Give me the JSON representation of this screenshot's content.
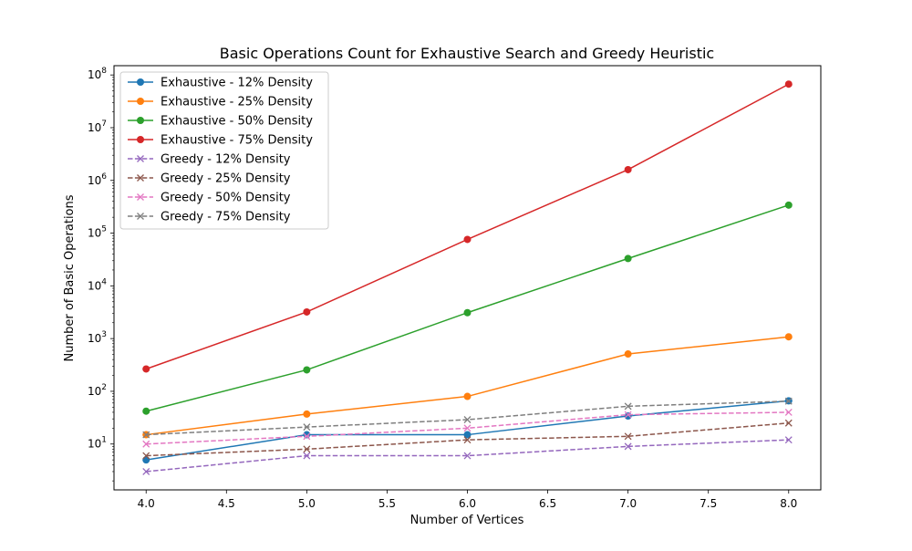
{
  "chart_data": {
    "type": "line",
    "title": "Basic Operations Count for Exhaustive Search and Greedy Heuristic",
    "xlabel": "Number of Vertices",
    "ylabel": "Number of Basic Operations",
    "xlim": [
      3.8,
      8.2
    ],
    "ylim": [
      1.35,
      150000000
    ],
    "yscale": "log",
    "x_ticks": [
      4.0,
      4.5,
      5.0,
      5.5,
      6.0,
      6.5,
      7.0,
      7.5,
      8.0
    ],
    "x_tick_labels": [
      "4.0",
      "4.5",
      "5.0",
      "5.5",
      "6.0",
      "6.5",
      "7.0",
      "7.5",
      "8.0"
    ],
    "y_tick_exponents": [
      "1",
      "2",
      "3",
      "4",
      "5",
      "6",
      "7",
      "8"
    ],
    "y_tick_base": "10",
    "grid": false,
    "legend_position": "upper-left",
    "x": [
      4,
      5,
      6,
      7,
      8
    ],
    "series": [
      {
        "name": "Exhaustive - 12% Density",
        "values": [
          5,
          15,
          15,
          34,
          66
        ],
        "color": "#1f77b4",
        "linestyle": "solid",
        "marker": "circle"
      },
      {
        "name": "Exhaustive - 25% Density",
        "values": [
          15,
          37,
          80,
          510,
          1080
        ],
        "color": "#ff7f0e",
        "linestyle": "solid",
        "marker": "circle"
      },
      {
        "name": "Exhaustive - 50% Density",
        "values": [
          42,
          255,
          3100,
          33000,
          340000
        ],
        "color": "#2ca02c",
        "linestyle": "solid",
        "marker": "circle"
      },
      {
        "name": "Exhaustive - 75% Density",
        "values": [
          265,
          3200,
          76000,
          1600000,
          67000000
        ],
        "color": "#d62728",
        "linestyle": "solid",
        "marker": "circle"
      },
      {
        "name": "Greedy - 12% Density",
        "values": [
          3,
          6,
          6,
          9,
          12
        ],
        "color": "#9467bd",
        "linestyle": "dashed",
        "marker": "x"
      },
      {
        "name": "Greedy - 25% Density",
        "values": [
          6,
          8,
          12,
          14,
          25
        ],
        "color": "#8c564b",
        "linestyle": "dashed",
        "marker": "x"
      },
      {
        "name": "Greedy - 50% Density",
        "values": [
          10,
          14,
          20,
          36,
          40
        ],
        "color": "#e377c2",
        "linestyle": "dashed",
        "marker": "x"
      },
      {
        "name": "Greedy - 75% Density",
        "values": [
          15,
          21,
          29,
          52,
          65
        ],
        "color": "#7f7f7f",
        "linestyle": "dashed",
        "marker": "x"
      }
    ]
  }
}
